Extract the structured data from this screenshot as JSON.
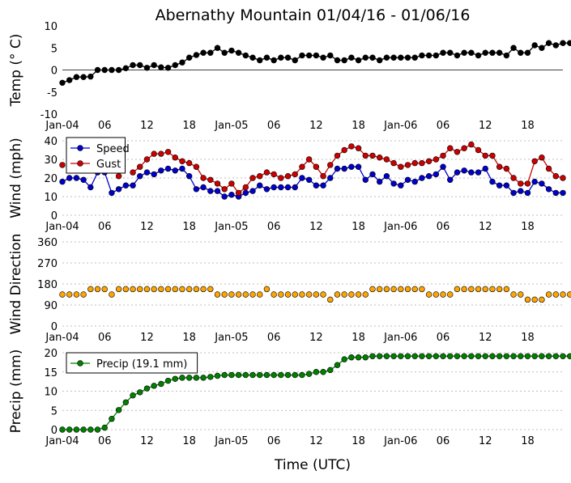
{
  "title": "Abernathy Mountain 01/04/16 - 01/06/16",
  "xlabel": "Time (UTC)",
  "xtick_labels": [
    "Jan-04",
    "06",
    "12",
    "18",
    "Jan-05",
    "06",
    "12",
    "18",
    "Jan-06",
    "06",
    "12",
    "18"
  ],
  "colors": {
    "speed": "#0000cc",
    "gust": "#cc0000",
    "direction": "#ffa500",
    "precip": "#008000",
    "temp": "#000000",
    "grid": "#aaaaaa"
  },
  "chart_data": [
    {
      "type": "line",
      "ylabel": "Temp (° C)",
      "ylim": [
        -10,
        10
      ],
      "yticks": [
        10,
        5,
        0,
        -5,
        -10
      ],
      "grid": false,
      "zero_line": true,
      "series": [
        {
          "key": "temp",
          "values": [
            -2.9,
            -2.3,
            -1.6,
            -1.6,
            -1.5,
            0,
            0,
            0,
            0,
            0.4,
            1.1,
            1.1,
            0.5,
            1.1,
            0.6,
            0.5,
            1.1,
            1.7,
            2.8,
            3.4,
            3.9,
            3.9,
            5,
            3.9,
            4.4,
            3.9,
            3.3,
            2.8,
            2.2,
            2.8,
            2.2,
            2.8,
            2.8,
            2.2,
            3.3,
            3.3,
            3.3,
            2.8,
            3.3,
            2.2,
            2.2,
            2.8,
            2.2,
            2.8,
            2.8,
            2.2,
            2.8,
            2.8,
            2.8,
            2.8,
            2.8,
            3.3,
            3.3,
            3.3,
            3.9,
            3.9,
            3.3,
            3.9,
            3.9,
            3.3,
            3.9,
            3.9,
            3.9,
            3.3,
            5,
            3.9,
            3.9,
            5.6,
            5,
            6.1,
            5.6,
            6.1,
            6.1
          ]
        }
      ]
    },
    {
      "type": "line",
      "ylabel": "Wind (mph)",
      "ylim": [
        0,
        40
      ],
      "yticks": [
        40,
        30,
        20,
        10,
        0
      ],
      "grid": true,
      "legend": "top-left",
      "series": [
        {
          "key": "speed",
          "name": "Speed",
          "values": [
            18,
            20,
            20,
            19,
            15,
            23,
            23,
            12,
            14,
            16,
            16,
            21,
            23,
            22,
            24,
            25,
            24,
            25,
            21,
            14,
            15,
            13,
            13,
            10,
            11,
            10,
            12,
            13,
            16,
            14,
            15,
            15,
            15,
            15,
            20,
            19,
            16,
            16,
            20,
            25,
            25,
            26,
            26,
            19,
            22,
            18,
            21,
            17,
            16,
            19,
            18,
            20,
            21,
            22,
            26,
            19,
            23,
            24,
            23,
            23,
            25,
            18,
            16,
            16,
            12,
            13,
            12,
            18,
            17,
            14,
            12,
            12
          ]
        },
        {
          "key": "gust",
          "name": "Gust",
          "values": [
            27,
            null,
            null,
            null,
            null,
            null,
            null,
            null,
            21,
            null,
            23,
            26,
            30,
            33,
            33,
            34,
            31,
            29,
            28,
            26,
            20,
            19,
            17,
            14,
            17,
            12,
            15,
            20,
            21,
            23,
            22,
            20,
            21,
            22,
            26,
            30,
            26,
            21,
            27,
            32,
            35,
            37,
            36,
            32,
            32,
            31,
            30,
            28,
            26,
            27,
            28,
            28,
            29,
            30,
            32,
            36,
            34,
            36,
            38,
            35,
            32,
            32,
            26,
            25,
            20,
            17,
            17,
            29,
            31,
            25,
            21,
            20
          ]
        }
      ]
    },
    {
      "type": "scatter",
      "ylabel": "Wind Direction",
      "ylim": [
        0,
        360
      ],
      "yticks": [
        360,
        270,
        180,
        90,
        0
      ],
      "grid": true,
      "series": [
        {
          "key": "direction",
          "values": [
            135,
            135,
            135,
            135,
            158,
            158,
            158,
            135,
            158,
            158,
            158,
            158,
            158,
            158,
            158,
            158,
            158,
            158,
            158,
            158,
            158,
            158,
            135,
            135,
            135,
            135,
            135,
            135,
            135,
            158,
            135,
            135,
            135,
            135,
            135,
            135,
            135,
            135,
            113,
            135,
            135,
            135,
            135,
            135,
            158,
            158,
            158,
            158,
            158,
            158,
            158,
            158,
            135,
            135,
            135,
            135,
            158,
            158,
            158,
            158,
            158,
            158,
            158,
            158,
            135,
            135,
            113,
            113,
            113,
            135,
            135,
            135,
            135,
            135
          ]
        }
      ]
    },
    {
      "type": "line",
      "ylabel": "Precip (mm)",
      "ylim": [
        0,
        20
      ],
      "yticks": [
        20,
        15,
        10,
        5,
        0
      ],
      "grid": true,
      "legend": "top-left",
      "series": [
        {
          "key": "precip",
          "name": "Precip (19.1 mm)",
          "values": [
            0,
            0,
            0,
            0,
            0,
            0,
            0.5,
            2.8,
            5.1,
            7.1,
            8.9,
            9.7,
            10.7,
            11.4,
            11.9,
            12.7,
            13.2,
            13.5,
            13.5,
            13.5,
            13.5,
            13.7,
            14,
            14.2,
            14.2,
            14.2,
            14.2,
            14.2,
            14.2,
            14.2,
            14.2,
            14.2,
            14.2,
            14.2,
            14.2,
            14.5,
            15,
            15,
            15.5,
            16.8,
            18.3,
            18.8,
            18.8,
            18.8,
            19.1,
            19.1,
            19.1,
            19.1,
            19.1,
            19.1,
            19.1,
            19.1,
            19.1,
            19.1,
            19.1,
            19.1,
            19.1,
            19.1,
            19.1,
            19.1,
            19.1,
            19.1,
            19.1,
            19.1,
            19.1,
            19.1,
            19.1,
            19.1,
            19.1,
            19.1,
            19.1,
            19.1,
            19.1
          ]
        }
      ]
    }
  ]
}
